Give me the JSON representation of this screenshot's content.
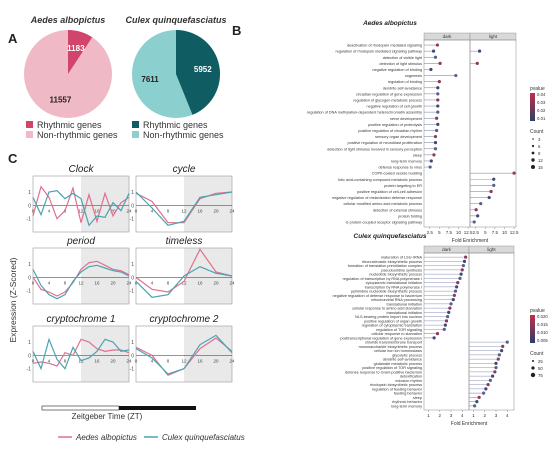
{
  "panel_letters": {
    "a": "A",
    "b": "B",
    "c": "C"
  },
  "pies": {
    "aedes": {
      "title": "Aedes albopictus",
      "rhythmic": 1183,
      "nonrhythmic": 11557,
      "rhythmic_color": "#d1456c",
      "non_color": "#f0b9c6"
    },
    "culex": {
      "title": "Culex quinquefasciatus",
      "rhythmic": 5952,
      "nonrhythmic": 7611,
      "rhythmic_color": "#0f5d63",
      "non_color": "#8ccfcf"
    },
    "legend_rhythmic": "Rhythmic genes",
    "legend_non": "Non-rhythmic genes"
  },
  "chart_data": [
    {
      "type": "line",
      "panel": "C",
      "ylabel": "Expression (Z-Scored)",
      "xlabel": "Zeitgeber Time (ZT)",
      "x": [
        0,
        4,
        8,
        12,
        16,
        20,
        24
      ],
      "xticks": [
        "0",
        "4",
        "8",
        "12",
        "16",
        "20",
        "24"
      ],
      "dark_phase_from": 12,
      "legend": [
        {
          "name": "Aedes albopictus",
          "color": "#e0708d"
        },
        {
          "name": "Culex quinquefasciatus",
          "color": "#4aa3b2"
        }
      ],
      "subplots": [
        {
          "title": "Clock",
          "x": [
            0,
            2,
            4,
            6,
            8,
            10,
            12,
            14,
            16,
            18,
            20,
            22,
            24
          ],
          "aedes": [
            -0.8,
            1.4,
            0.6,
            -1.0,
            -0.4,
            1.3,
            -1.3,
            0.8,
            -1.2,
            0.9,
            -0.8,
            0.2,
            0.6
          ],
          "culex": [
            0.6,
            -0.7,
            1.0,
            1.1,
            0.5,
            0.9,
            0.5,
            -1.5,
            -0.8,
            -0.9,
            0.2,
            -0.4,
            0.9
          ]
        },
        {
          "title": "cycle",
          "x": [
            0,
            4,
            8,
            12,
            16,
            20,
            24
          ],
          "aedes": [
            0.9,
            0.3,
            -1.3,
            -1.3,
            0.5,
            0.9,
            1.0
          ],
          "culex": [
            1.0,
            -0.2,
            -1.5,
            -1.2,
            0.6,
            0.8,
            1.0
          ]
        },
        {
          "title": "period",
          "x": [
            0,
            2,
            4,
            6,
            8,
            10,
            12,
            14,
            16,
            18,
            20,
            22,
            24
          ],
          "aedes": [
            0.0,
            -0.9,
            -1.1,
            -1.4,
            -1.1,
            -0.4,
            0.6,
            1.1,
            1.2,
            0.9,
            0.6,
            0.5,
            0.2
          ],
          "culex": [
            0.6,
            -0.6,
            -1.3,
            -1.6,
            -1.3,
            -0.3,
            0.4,
            0.8,
            0.9,
            0.7,
            0.5,
            0.4,
            0.1
          ]
        },
        {
          "title": "timeless",
          "x": [
            0,
            4,
            8,
            12,
            16,
            20,
            24
          ],
          "aedes": [
            0.0,
            -0.9,
            -1.1,
            -0.3,
            2.1,
            0.4,
            0.1
          ],
          "culex": [
            -0.3,
            -1.5,
            -1.3,
            0.1,
            0.8,
            0.3,
            0.1
          ]
        },
        {
          "title": "cryptochrome 1",
          "x": [
            0,
            2,
            4,
            6,
            8,
            10,
            12,
            14,
            16,
            18,
            20,
            22,
            24
          ],
          "aedes": [
            -0.6,
            -0.5,
            -0.6,
            -0.8,
            0.2,
            0.0,
            1.2,
            1.0,
            0.5,
            0.3,
            0.4,
            0.4,
            0.2
          ],
          "culex": [
            0.3,
            -1.0,
            1.2,
            -0.3,
            -1.0,
            0.6,
            -0.4,
            -0.2,
            0.3,
            1.2,
            1.0,
            0.3,
            0.4
          ]
        },
        {
          "title": "cryptochrome 2",
          "x": [
            0,
            4,
            8,
            12,
            16,
            20,
            24
          ],
          "aedes": [
            0.6,
            0.0,
            -1.5,
            -1.0,
            0.5,
            1.3,
            0.3
          ],
          "culex": [
            0.5,
            -0.2,
            -1.4,
            -1.0,
            0.8,
            1.5,
            0.2
          ]
        }
      ]
    },
    {
      "type": "scatter",
      "panel": "B-top",
      "title": "Aedes albopictus",
      "facets": [
        "dark",
        "light"
      ],
      "xlabel": "Fold Enrichment",
      "x_ticks": [
        2.5,
        5.0,
        7.5,
        10.0,
        12.5
      ],
      "xlim": [
        1,
        13
      ],
      "legend_pvalue_title": "pvalue",
      "pvalue_ticks": [
        "0.04",
        "0.03",
        "0.02",
        "0.01"
      ],
      "legend_count_title": "Count",
      "count_ticks": [
        "3",
        "6",
        "9",
        "12",
        "15"
      ],
      "terms": [
        "deactivation of rhodopsin mediated signaling",
        "regulation of rhodopsin mediated signaling pathway",
        "detection of visible light",
        "detection of light stimulus",
        "negative regulation of binding",
        "oogenesis",
        "regulation of binding",
        "dendrite self-avoidance",
        "circadian regulation of gene expression",
        "regulation of glycogen metabolic process",
        "negative regulation of cell growth",
        "regulation of DNA methylation-dependent heterochromatin assembly",
        "nerve development",
        "positive regulation of proteolysis",
        "positive regulation of circadian rhythm",
        "sensory organ development",
        "positive regulation of neuroblast proliferation",
        "detection of light stimulus involved in sensory perception",
        "sleep",
        "long-term memory",
        "defense response to virus",
        "COPII-coated vesicle budding",
        "folic acid-containing compound metabolic process",
        "protein targeting to ER",
        "positive regulation of cell-cell adhesion",
        "negative regulation of melanization defense response",
        "cellular modified amino acid metabolic process",
        "detection of external stimulus",
        "protein folding",
        "G protein-coupled receptor signaling pathway"
      ],
      "dark": [
        4.5,
        3.5,
        4.0,
        5.2,
        2.8,
        9.3,
        5.0,
        4.6,
        4.6,
        4.6,
        4.6,
        4.6,
        4.3,
        4.6,
        4.3,
        4.0,
        4.0,
        4.0,
        3.6,
        2.9,
        2.6,
        null,
        null,
        null,
        null,
        null,
        null,
        null,
        null,
        null
      ],
      "light": [
        null,
        3.5,
        null,
        2.9,
        null,
        null,
        null,
        null,
        null,
        null,
        null,
        null,
        null,
        null,
        null,
        null,
        null,
        null,
        null,
        null,
        null,
        12.5,
        7.2,
        7.2,
        6.5,
        6.0,
        3.8,
        2.6,
        3.0,
        2.1
      ]
    },
    {
      "type": "scatter",
      "panel": "B-bottom",
      "title": "Culex quinquefasciatus",
      "facets": [
        "dark",
        "light"
      ],
      "xlabel": "Fold Enrichment",
      "x_ticks": [
        1,
        2,
        3,
        4
      ],
      "xlim": [
        0.6,
        4.6
      ],
      "legend_pvalue_title": "pvalue",
      "pvalue_ticks": [
        "0.020",
        "0.015",
        "0.010",
        "0.005"
      ],
      "legend_count_title": "Count",
      "count_ticks": [
        "25",
        "50",
        "75"
      ],
      "terms": [
        "maturation of LSU-rRNA",
        "ribonucleoside biosynthetic process",
        "formation of translation preinitiation complex",
        "pseudouridine synthesis",
        "nucleotide biosynthetic process",
        "regulation of transcription by RNA polymerase I",
        "cytoplasmic translational initiation",
        "transcription by RNA polymerase I",
        "pyrimidine nucleotide biosynthetic process",
        "negative regulation of defense response to bacterium",
        "mitochondrial RNA processing",
        "translational initiation",
        "cellular response to amino acid starvation",
        "translational initiation",
        "NLS-bearing protein import into nucleus",
        "positive regulation of organ growth",
        "regulation of cytoplasmic translation",
        "regulation of TOR signaling",
        "cellular response to starvation",
        "posttranscriptional regulation of gene expression",
        "chloride transmembrane transport",
        "monosaccharide biosynthetic process",
        "cellular iron ion homeostasis",
        "glycolytic process",
        "dendrite self-avoidance",
        "glutamate metabolic process",
        "positive regulation of TOR signaling",
        "defense response to Gram-positive bacterium",
        "detoxification",
        "eclosion rhythm",
        "rhodopsin biosynthetic process",
        "regulation of feeding behavior",
        "feeding behavior",
        "sleep",
        "rhythmic behavior",
        "long-term memory"
      ],
      "dark": [
        4.3,
        4.2,
        4.1,
        4.0,
        3.9,
        3.8,
        3.6,
        3.5,
        3.4,
        3.3,
        3.2,
        3.0,
        2.9,
        2.8,
        2.7,
        2.6,
        2.5,
        2.4,
        1.8,
        1.5,
        null,
        null,
        null,
        null,
        null,
        null,
        null,
        null,
        null,
        null,
        null,
        null,
        null,
        null,
        null,
        null
      ],
      "light": [
        null,
        null,
        null,
        null,
        null,
        null,
        null,
        null,
        null,
        null,
        null,
        null,
        null,
        null,
        null,
        null,
        null,
        null,
        null,
        null,
        4.0,
        3.6,
        3.5,
        3.3,
        3.2,
        3.0,
        3.0,
        2.9,
        2.7,
        2.5,
        2.3,
        2.1,
        1.9,
        1.5,
        1.3,
        1.1
      ]
    }
  ]
}
